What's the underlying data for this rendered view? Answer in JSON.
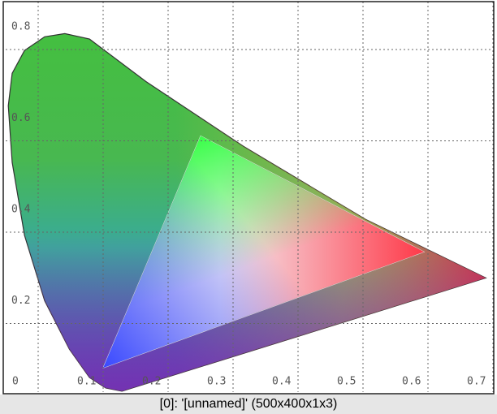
{
  "window": {
    "caption": "[0]: '[unnamed]' (500x400x1x3)"
  },
  "chart_data": {
    "type": "chromaticity",
    "xlim": [
      0,
      0.75
    ],
    "ylim": [
      0,
      0.855
    ],
    "xticks": [
      0,
      0.1,
      0.2,
      0.3,
      0.4,
      0.5,
      0.6,
      0.7
    ],
    "yticks": [
      0.2,
      0.4,
      0.6,
      0.8
    ],
    "grid": true,
    "locus": {
      "x": [
        0.154,
        0.129,
        0.098,
        0.06,
        0.029,
        0.01,
        0.004,
        0.01,
        0.029,
        0.06,
        0.091,
        0.129,
        0.216,
        0.366,
        0.554,
        0.739,
        0.179
      ],
      "y": [
        0.009,
        0.032,
        0.094,
        0.2,
        0.343,
        0.503,
        0.627,
        0.698,
        0.748,
        0.778,
        0.785,
        0.773,
        0.68,
        0.538,
        0.378,
        0.25,
        0.002
      ]
    },
    "gamut": {
      "x": [
        0.644,
        0.3,
        0.15
      ],
      "y": [
        0.307,
        0.561,
        0.053
      ],
      "colors": [
        "#ff3040",
        "#30ff40",
        "#3040ff"
      ]
    }
  }
}
